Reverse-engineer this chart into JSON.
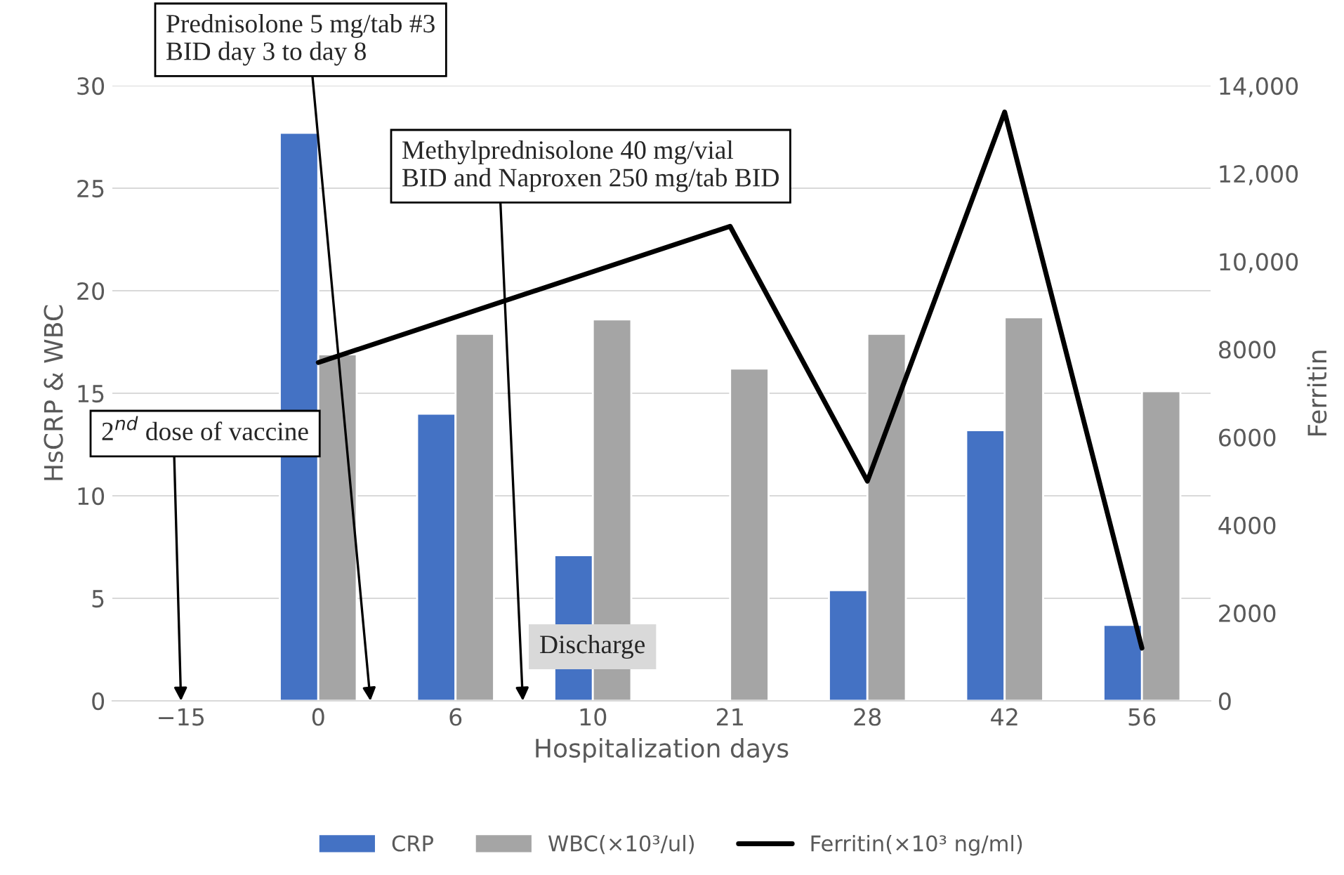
{
  "chart_data": {
    "type": "bar",
    "categories": [
      "−15",
      "0",
      "6",
      "10",
      "21",
      "28",
      "42",
      "56"
    ],
    "xlabel": "Hospitalization days",
    "ylabel": "HsCRP & WBC",
    "y2label": "Ferritin",
    "series": [
      {
        "name": "CRP",
        "color": "#4472c4",
        "values": [
          null,
          27.7,
          14.0,
          7.1,
          null,
          5.4,
          13.2,
          3.7
        ]
      },
      {
        "name": "WBC(×10³/ul)",
        "color": "#a5a5a5",
        "values": [
          null,
          16.9,
          17.9,
          18.6,
          16.2,
          17.9,
          18.7,
          15.1
        ]
      },
      {
        "name": "Ferritin(×10³ ng/ml)",
        "type": "line",
        "axis": "y2",
        "color": "#000000",
        "values": [
          null,
          7700,
          null,
          null,
          10800,
          5000,
          13400,
          1200
        ]
      }
    ],
    "ylim": [
      0,
      30
    ],
    "yticks": [
      0,
      5,
      10,
      15,
      20,
      25,
      30
    ],
    "y2lim": [
      0,
      14000
    ],
    "y2ticks": [
      0,
      2000,
      4000,
      6000,
      8000,
      {
        "value": 10000,
        "label": "10,000"
      },
      {
        "value": 12000,
        "label": "12,000"
      },
      {
        "value": 14000,
        "label": "14,000"
      }
    ],
    "annotations": [
      "2$^{nd}$ dose of vaccine",
      "Prednisolone 5 mg/tab #3\nBID day 3 to day 8",
      "Methylprednisolone 40 mg/vial\nBID and Naproxen 250 mg/tab BID",
      "Discharge"
    ],
    "grid": "y",
    "legend": "bottom"
  }
}
